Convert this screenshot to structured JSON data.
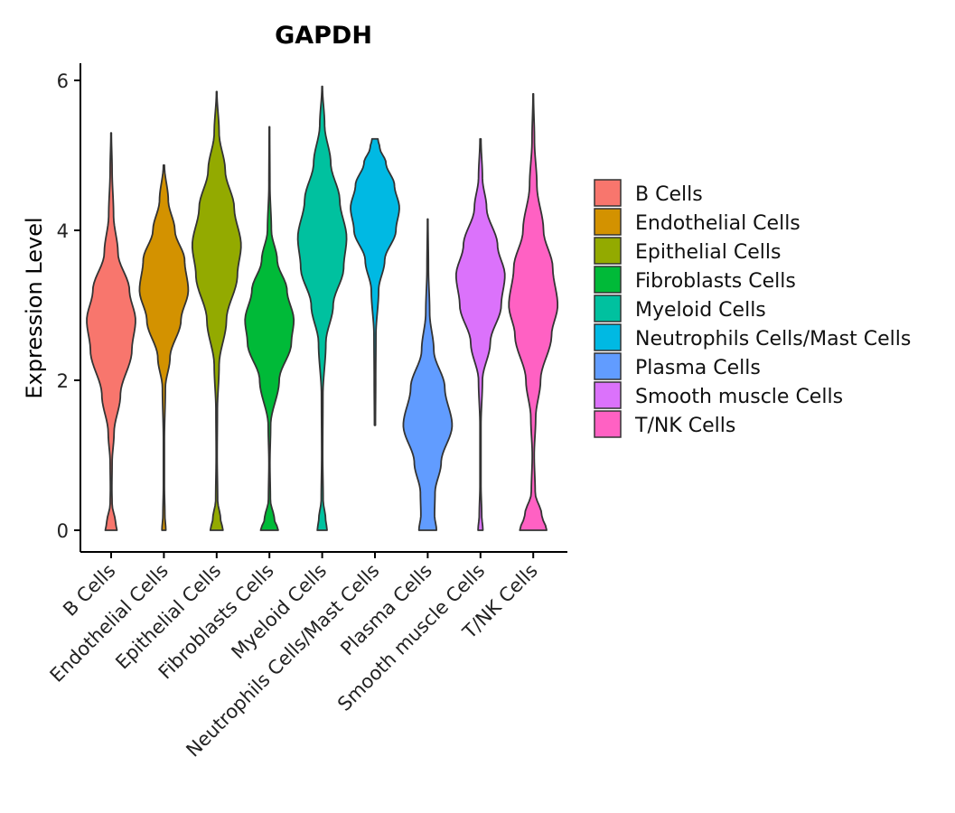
{
  "chart_data": {
    "type": "violin",
    "title": "GAPDH",
    "xlabel": "",
    "ylabel": "Expression Level",
    "ylim": [
      -0.3,
      6.2
    ],
    "yticks": [
      0,
      2,
      4,
      6
    ],
    "grid": false,
    "legend_position": "right",
    "categories": [
      "B Cells",
      "Endothelial Cells",
      "Epithelial Cells",
      "Fibroblasts Cells",
      "Myeloid Cells",
      "Neutrophils Cells/Mast Cells",
      "Plasma Cells",
      "Smooth muscle Cells",
      "T/NK Cells"
    ],
    "series": [
      {
        "name": "B Cells",
        "color": "#F8766D",
        "min": 0,
        "max": 5.3,
        "profile": [
          [
            0,
            0.24
          ],
          [
            0.1,
            0.18
          ],
          [
            0.35,
            0.04
          ],
          [
            0.55,
            0.03
          ],
          [
            0.9,
            0.04
          ],
          [
            1.3,
            0.12
          ],
          [
            1.8,
            0.38
          ],
          [
            2.4,
            0.85
          ],
          [
            2.8,
            1.0
          ],
          [
            3.2,
            0.75
          ],
          [
            3.7,
            0.28
          ],
          [
            4.2,
            0.1
          ],
          [
            4.8,
            0.04
          ],
          [
            5.3,
            0.01
          ]
        ]
      },
      {
        "name": "Endothelial Cells",
        "color": "#D39200",
        "min": 0,
        "max": 4.87,
        "profile": [
          [
            0,
            0.08
          ],
          [
            0.2,
            0.04
          ],
          [
            0.6,
            0.02
          ],
          [
            1.2,
            0.02
          ],
          [
            1.9,
            0.06
          ],
          [
            2.3,
            0.25
          ],
          [
            2.8,
            0.7
          ],
          [
            3.2,
            1.0
          ],
          [
            3.6,
            0.85
          ],
          [
            4.0,
            0.45
          ],
          [
            4.4,
            0.18
          ],
          [
            4.87,
            0.02
          ]
        ]
      },
      {
        "name": "Epithelial Cells",
        "color": "#93AA00",
        "min": 0,
        "max": 5.85,
        "profile": [
          [
            0,
            0.26
          ],
          [
            0.15,
            0.16
          ],
          [
            0.4,
            0.04
          ],
          [
            1.0,
            0.02
          ],
          [
            1.6,
            0.03
          ],
          [
            2.2,
            0.1
          ],
          [
            2.8,
            0.4
          ],
          [
            3.4,
            0.85
          ],
          [
            3.8,
            1.0
          ],
          [
            4.3,
            0.72
          ],
          [
            4.8,
            0.35
          ],
          [
            5.3,
            0.1
          ],
          [
            5.85,
            0.01
          ]
        ]
      },
      {
        "name": "Fibroblasts Cells",
        "color": "#00BA38",
        "min": 0,
        "max": 5.38,
        "profile": [
          [
            0,
            0.36
          ],
          [
            0.15,
            0.2
          ],
          [
            0.4,
            0.04
          ],
          [
            0.9,
            0.02
          ],
          [
            1.4,
            0.05
          ],
          [
            2.0,
            0.4
          ],
          [
            2.5,
            0.9
          ],
          [
            2.8,
            1.0
          ],
          [
            3.2,
            0.72
          ],
          [
            3.6,
            0.32
          ],
          [
            4.0,
            0.08
          ],
          [
            4.6,
            0.02
          ],
          [
            5.38,
            0.01
          ]
        ]
      },
      {
        "name": "Myeloid Cells",
        "color": "#00C19F",
        "min": 0,
        "max": 5.92,
        "profile": [
          [
            0,
            0.2
          ],
          [
            0.15,
            0.14
          ],
          [
            0.4,
            0.04
          ],
          [
            1.0,
            0.02
          ],
          [
            1.8,
            0.03
          ],
          [
            2.5,
            0.15
          ],
          [
            3.0,
            0.45
          ],
          [
            3.5,
            0.88
          ],
          [
            3.9,
            1.0
          ],
          [
            4.4,
            0.72
          ],
          [
            4.9,
            0.35
          ],
          [
            5.4,
            0.1
          ],
          [
            5.92,
            0.01
          ]
        ]
      },
      {
        "name": "Neutrophils Cells/Mast Cells",
        "color": "#00B9E3",
        "min": 1.4,
        "max": 5.22,
        "profile": [
          [
            1.4,
            0.02
          ],
          [
            2.0,
            0.03
          ],
          [
            2.6,
            0.04
          ],
          [
            3.2,
            0.15
          ],
          [
            3.6,
            0.4
          ],
          [
            4.0,
            0.86
          ],
          [
            4.3,
            1.0
          ],
          [
            4.6,
            0.8
          ],
          [
            4.9,
            0.45
          ],
          [
            5.1,
            0.2
          ],
          [
            5.22,
            0.12
          ]
        ]
      },
      {
        "name": "Plasma Cells",
        "color": "#619CFF",
        "min": 0,
        "max": 4.15,
        "profile": [
          [
            0,
            0.36
          ],
          [
            0.2,
            0.28
          ],
          [
            0.5,
            0.3
          ],
          [
            0.9,
            0.55
          ],
          [
            1.4,
            1.0
          ],
          [
            1.9,
            0.7
          ],
          [
            2.4,
            0.25
          ],
          [
            2.9,
            0.08
          ],
          [
            3.5,
            0.03
          ],
          [
            4.15,
            0.01
          ]
        ]
      },
      {
        "name": "Smooth muscle Cells",
        "color": "#DB72FB",
        "min": 0,
        "max": 5.22,
        "profile": [
          [
            0,
            0.1
          ],
          [
            0.2,
            0.05
          ],
          [
            0.6,
            0.02
          ],
          [
            1.4,
            0.02
          ],
          [
            2.0,
            0.08
          ],
          [
            2.5,
            0.4
          ],
          [
            3.0,
            0.85
          ],
          [
            3.4,
            1.0
          ],
          [
            3.8,
            0.7
          ],
          [
            4.3,
            0.25
          ],
          [
            4.7,
            0.08
          ],
          [
            5.22,
            0.02
          ]
        ]
      },
      {
        "name": "T/NK Cells",
        "color": "#FF61C3",
        "min": 0,
        "max": 5.82,
        "profile": [
          [
            0,
            0.55
          ],
          [
            0.2,
            0.35
          ],
          [
            0.5,
            0.08
          ],
          [
            1.0,
            0.04
          ],
          [
            1.5,
            0.1
          ],
          [
            2.0,
            0.3
          ],
          [
            2.6,
            0.75
          ],
          [
            3.0,
            1.0
          ],
          [
            3.5,
            0.8
          ],
          [
            4.0,
            0.42
          ],
          [
            4.6,
            0.15
          ],
          [
            5.2,
            0.05
          ],
          [
            5.82,
            0.01
          ]
        ]
      }
    ]
  }
}
